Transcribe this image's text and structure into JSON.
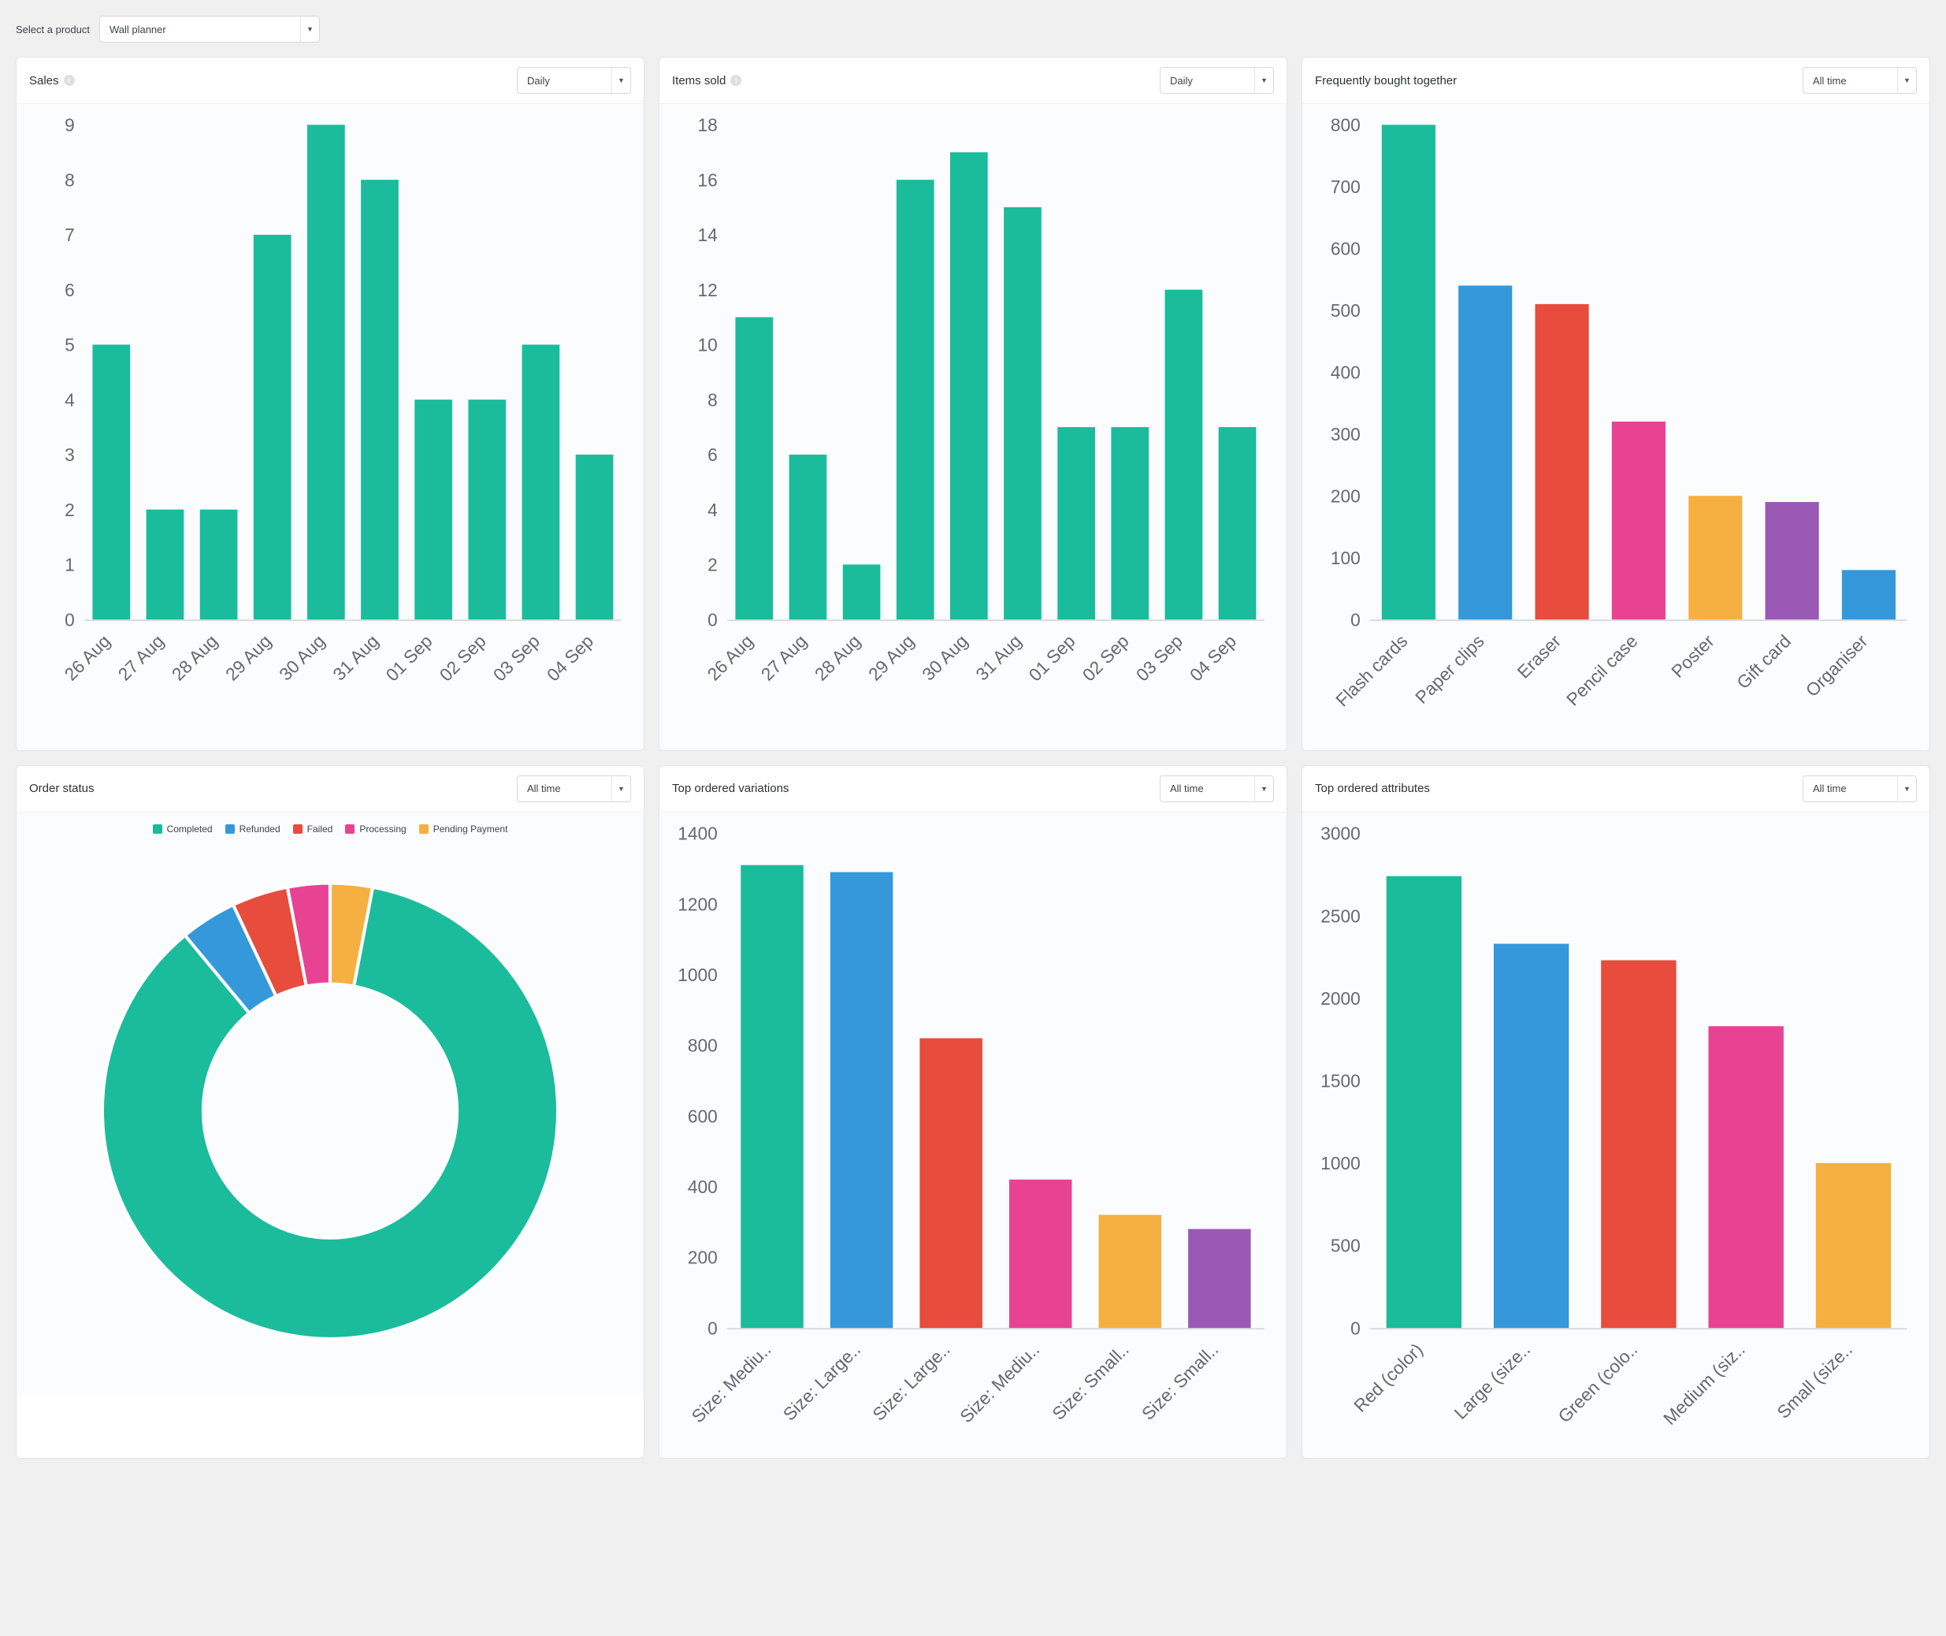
{
  "colors": {
    "teal": "#1abc9c",
    "blue": "#3498db",
    "red": "#e74c3c",
    "pink": "#e84393",
    "orange": "#f5b041",
    "purple": "#9b59b6",
    "axis": "#646970",
    "line": "#d9dcdf"
  },
  "product_selector": {
    "label": "Select a product",
    "value": "Wall planner"
  },
  "sales_chart": {
    "title": "Sales",
    "dropdown": "Daily",
    "has_info": true,
    "type": "bar",
    "ymax": 9,
    "ystep": 1,
    "bar_color": "#1abc9c",
    "categories": [
      "26 Aug",
      "27 Aug",
      "28 Aug",
      "29 Aug",
      "30 Aug",
      "31 Aug",
      "01 Sep",
      "02 Sep",
      "03 Sep",
      "04 Sep"
    ],
    "values": [
      5,
      2,
      2,
      7,
      9,
      8,
      4,
      4,
      5,
      3
    ]
  },
  "items_sold_chart": {
    "title": "Items sold",
    "dropdown": "Daily",
    "has_info": true,
    "type": "bar",
    "ymax": 18,
    "ystep": 2,
    "bar_color": "#1abc9c",
    "categories": [
      "26 Aug",
      "27 Aug",
      "28 Aug",
      "29 Aug",
      "30 Aug",
      "31 Aug",
      "01 Sep",
      "02 Sep",
      "03 Sep",
      "04 Sep"
    ],
    "values": [
      11,
      6,
      2,
      16,
      17,
      15,
      7,
      7,
      12,
      7
    ]
  },
  "freq_bought_chart": {
    "title": "Frequently bought together",
    "dropdown": "All time",
    "has_info": false,
    "type": "bar",
    "ymax": 800,
    "ystep": 100,
    "categories": [
      "Flash cards",
      "Paper clips",
      "Eraser",
      "Pencil case",
      "Poster",
      "Gift card",
      "Organiser"
    ],
    "values": [
      800,
      540,
      510,
      320,
      200,
      190,
      80
    ],
    "bar_colors": [
      "#1abc9c",
      "#3498db",
      "#e74c3c",
      "#e84393",
      "#f5b041",
      "#9b59b6",
      "#3498db"
    ]
  },
  "order_status": {
    "title": "Order status",
    "dropdown": "All time",
    "has_info": false,
    "type": "donut",
    "legend": [
      {
        "label": "Completed",
        "color": "#1abc9c"
      },
      {
        "label": "Refunded",
        "color": "#3498db"
      },
      {
        "label": "Failed",
        "color": "#e74c3c"
      },
      {
        "label": "Processing",
        "color": "#e84393"
      },
      {
        "label": "Pending Payment",
        "color": "#f5b041"
      }
    ],
    "slices": [
      {
        "value": 86,
        "color": "#1abc9c"
      },
      {
        "value": 4,
        "color": "#3498db"
      },
      {
        "value": 4,
        "color": "#e74c3c"
      },
      {
        "value": 3,
        "color": "#e84393"
      },
      {
        "value": 3,
        "color": "#f5b041"
      }
    ]
  },
  "top_variations_chart": {
    "title": "Top ordered variations",
    "dropdown": "All time",
    "has_info": false,
    "type": "bar",
    "ymax": 1400,
    "ystep": 200,
    "categories": [
      "Size: Mediu..",
      "Size: Large..",
      "Size: Large..",
      "Size: Mediu..",
      "Size: Small..",
      "Size: Small.."
    ],
    "values": [
      1310,
      1290,
      820,
      420,
      320,
      280
    ],
    "bar_colors": [
      "#1abc9c",
      "#3498db",
      "#e74c3c",
      "#e84393",
      "#f5b041",
      "#9b59b6"
    ]
  },
  "top_attributes_chart": {
    "title": "Top ordered attributes",
    "dropdown": "All time",
    "has_info": false,
    "type": "bar",
    "ymax": 3000,
    "ystep": 500,
    "categories": [
      "Red (color)",
      "Large (size..",
      "Green (colo..",
      "Medium (siz..",
      "Small (size.."
    ],
    "values": [
      2740,
      2330,
      2230,
      1830,
      1000
    ],
    "bar_colors": [
      "#1abc9c",
      "#3498db",
      "#e74c3c",
      "#e84393",
      "#f5b041"
    ]
  }
}
